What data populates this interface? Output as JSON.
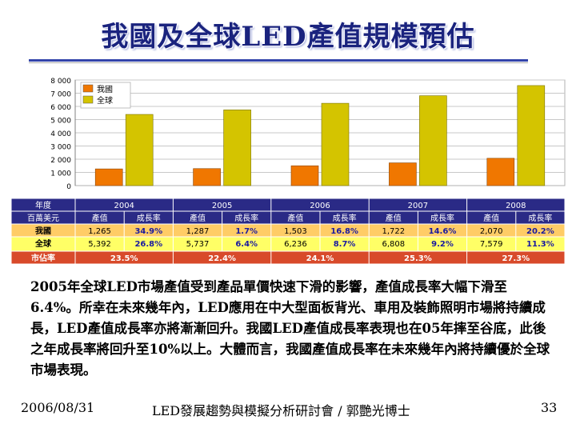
{
  "title": "我國及全球LED產值規模預估",
  "paragraph": "2005年全球LED市場產值受到產品單價快速下滑的影響，產值成長率大幅下滑至6.4%。所幸在未來幾年內，LED應用在中大型面板背光、車用及裝飾照明市場將持續成長，LED產值成長率亦將漸漸回升。我國LED產值成長率表現也在05年摔至谷底，此後之年成長率將回升至10%以上。大體而言，我國產值成長率在未來幾年內將持續優於全球市場表現。",
  "footer": {
    "date": "2006/08/31",
    "center": "LED發展趨勢與模擬分析研討會 / 郭艷光博士",
    "page": "33"
  },
  "colors": {
    "taiwan": "#f07700",
    "global": "#d4c400",
    "row_year": "#2a2a86",
    "row_taiwan": "#ffcc66",
    "row_global": "#ffff66",
    "row_share": "#d84a2a"
  },
  "chart_data": {
    "type": "bar",
    "categories": [
      "2004",
      "2005",
      "2006",
      "2007",
      "2008"
    ],
    "series": [
      {
        "name": "我國",
        "values": [
          1265,
          1287,
          1503,
          1722,
          2070
        ]
      },
      {
        "name": "全球",
        "values": [
          5392,
          5737,
          6236,
          6808,
          7579
        ]
      }
    ],
    "ylim": [
      0,
      8000
    ],
    "yticks": [
      "0",
      "1 000",
      "2 000",
      "3 000",
      "4 000",
      "5 000",
      "6 000",
      "7 000",
      "8 000"
    ],
    "legend_position": "top-left",
    "grid": true
  },
  "table": {
    "corner_top": "年度",
    "corner_bottom": "百萬美元",
    "sub_headers": [
      "產值",
      "成長率"
    ],
    "rows": [
      {
        "label": "我國",
        "cells": [
          [
            "1,265",
            "34.9%"
          ],
          [
            "1,287",
            "1.7%"
          ],
          [
            "1,503",
            "16.8%"
          ],
          [
            "1,722",
            "14.6%"
          ],
          [
            "2,070",
            "20.2%"
          ]
        ]
      },
      {
        "label": "全球",
        "cells": [
          [
            "5,392",
            "26.8%"
          ],
          [
            "5,737",
            "6.4%"
          ],
          [
            "6,236",
            "8.7%"
          ],
          [
            "6,808",
            "9.2%"
          ],
          [
            "7,579",
            "11.3%"
          ]
        ]
      }
    ],
    "share_label": "市佔率",
    "share": [
      "23.5%",
      "22.4%",
      "24.1%",
      "25.3%",
      "27.3%"
    ]
  }
}
